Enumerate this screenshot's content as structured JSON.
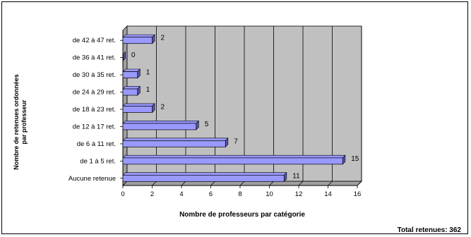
{
  "chart_data": {
    "type": "bar",
    "orientation": "horizontal",
    "categories": [
      "Aucune retenue",
      "de 1 à 5 ret.",
      "de 6 à 11 ret.",
      "de 12 à 17 ret.",
      "de 18 à 23 ret.",
      "de 24 à 29 ret.",
      "de 30 à 35 ret.",
      "de 36 à 41 ret.",
      "de 42 à 47 ret."
    ],
    "values": [
      11,
      15,
      7,
      5,
      2,
      1,
      1,
      0,
      2
    ],
    "xlabel": "Nombre de professeurs par catégorie",
    "ylabel_lines": [
      "Nombre de retenues ordonnées",
      "par professeur"
    ],
    "xlim": [
      0,
      16
    ],
    "xticks": [
      0,
      2,
      4,
      6,
      8,
      10,
      12,
      14,
      16
    ],
    "grid": true,
    "legend": "none",
    "annotation": "Total retenues: 362",
    "colors": {
      "bar_fill": "#9999ff",
      "bar_side": "#5555aa",
      "plot_background": "#c0c0c0",
      "plot_wall": "#a0a0a0",
      "gridline": "#000000"
    }
  }
}
